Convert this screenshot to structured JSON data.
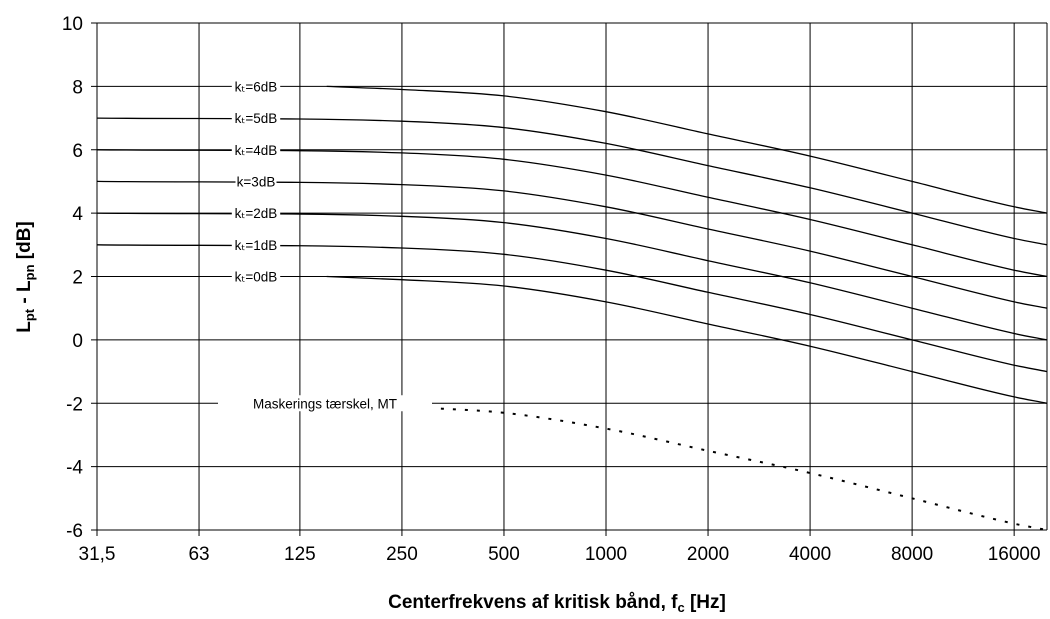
{
  "chart_data": {
    "type": "line",
    "xscale": "log2",
    "x_ticks": [
      "31,5",
      "63",
      "125",
      "250",
      "500",
      "1000",
      "2000",
      "4000",
      "8000",
      "16000"
    ],
    "x_tick_values": [
      31.5,
      63,
      125,
      250,
      500,
      1000,
      2000,
      4000,
      8000,
      16000
    ],
    "xlim": [
      31.5,
      20000
    ],
    "ylim": [
      -6,
      10
    ],
    "y_ticks": [
      -6,
      -4,
      -2,
      0,
      2,
      4,
      6,
      8,
      10
    ],
    "xlabel": "Centerfrekvens af kritisk bånd, fc [Hz]",
    "ylabel": "Lpt - Lpn [dB]",
    "grid": true,
    "series": [
      {
        "name": "kt=6dB",
        "style": "solid",
        "x": [
          150,
          250,
          500,
          1000,
          2000,
          4000,
          8000,
          16000,
          20000
        ],
        "y": [
          8.0,
          7.9,
          7.7,
          7.2,
          6.5,
          5.8,
          5.0,
          4.2,
          4.0
        ]
      },
      {
        "name": "kt=5dB",
        "style": "solid",
        "x": [
          31.5,
          250,
          500,
          1000,
          2000,
          4000,
          8000,
          16000,
          20000
        ],
        "y": [
          7.0,
          6.9,
          6.7,
          6.2,
          5.5,
          4.8,
          4.0,
          3.2,
          3.0
        ]
      },
      {
        "name": "kt=4dB",
        "style": "solid",
        "x": [
          31.5,
          250,
          500,
          1000,
          2000,
          4000,
          8000,
          16000,
          20000
        ],
        "y": [
          6.0,
          5.9,
          5.7,
          5.2,
          4.5,
          3.8,
          3.0,
          2.2,
          2.0
        ]
      },
      {
        "name": "k=3dB",
        "style": "solid",
        "x": [
          31.5,
          250,
          500,
          1000,
          2000,
          4000,
          8000,
          16000,
          20000
        ],
        "y": [
          5.0,
          4.9,
          4.7,
          4.2,
          3.5,
          2.8,
          2.0,
          1.2,
          1.0
        ]
      },
      {
        "name": "kt=2dB",
        "style": "solid",
        "x": [
          31.5,
          250,
          500,
          1000,
          2000,
          4000,
          8000,
          16000,
          20000
        ],
        "y": [
          4.0,
          3.9,
          3.7,
          3.2,
          2.5,
          1.8,
          1.0,
          0.2,
          0.0
        ]
      },
      {
        "name": "kt=1dB",
        "style": "solid",
        "x": [
          31.5,
          250,
          500,
          1000,
          2000,
          4000,
          8000,
          16000,
          20000
        ],
        "y": [
          3.0,
          2.9,
          2.7,
          2.2,
          1.5,
          0.8,
          0.0,
          -0.8,
          -1.0
        ]
      },
      {
        "name": "kt=0dB",
        "style": "solid",
        "x": [
          150,
          250,
          500,
          1000,
          2000,
          4000,
          8000,
          16000,
          20000
        ],
        "y": [
          2.0,
          1.9,
          1.7,
          1.2,
          0.5,
          -0.2,
          -1.0,
          -1.8,
          -2.0
        ]
      },
      {
        "name": "Maskerings tærskel, MT",
        "style": "dotted",
        "x": [
          200,
          250,
          500,
          1000,
          2000,
          4000,
          8000,
          16000,
          20000
        ],
        "y": [
          -2.0,
          -2.1,
          -2.3,
          -2.8,
          -3.5,
          -4.2,
          -5.0,
          -5.8,
          -6.0
        ]
      }
    ],
    "labels": [
      "kₜ=6dB",
      "kₜ=5dB",
      "kₜ=4dB",
      "k=3dB",
      "kₜ=2dB",
      "kₜ=1dB",
      "kₜ=0dB",
      "Maskerings tærskel, MT"
    ]
  }
}
